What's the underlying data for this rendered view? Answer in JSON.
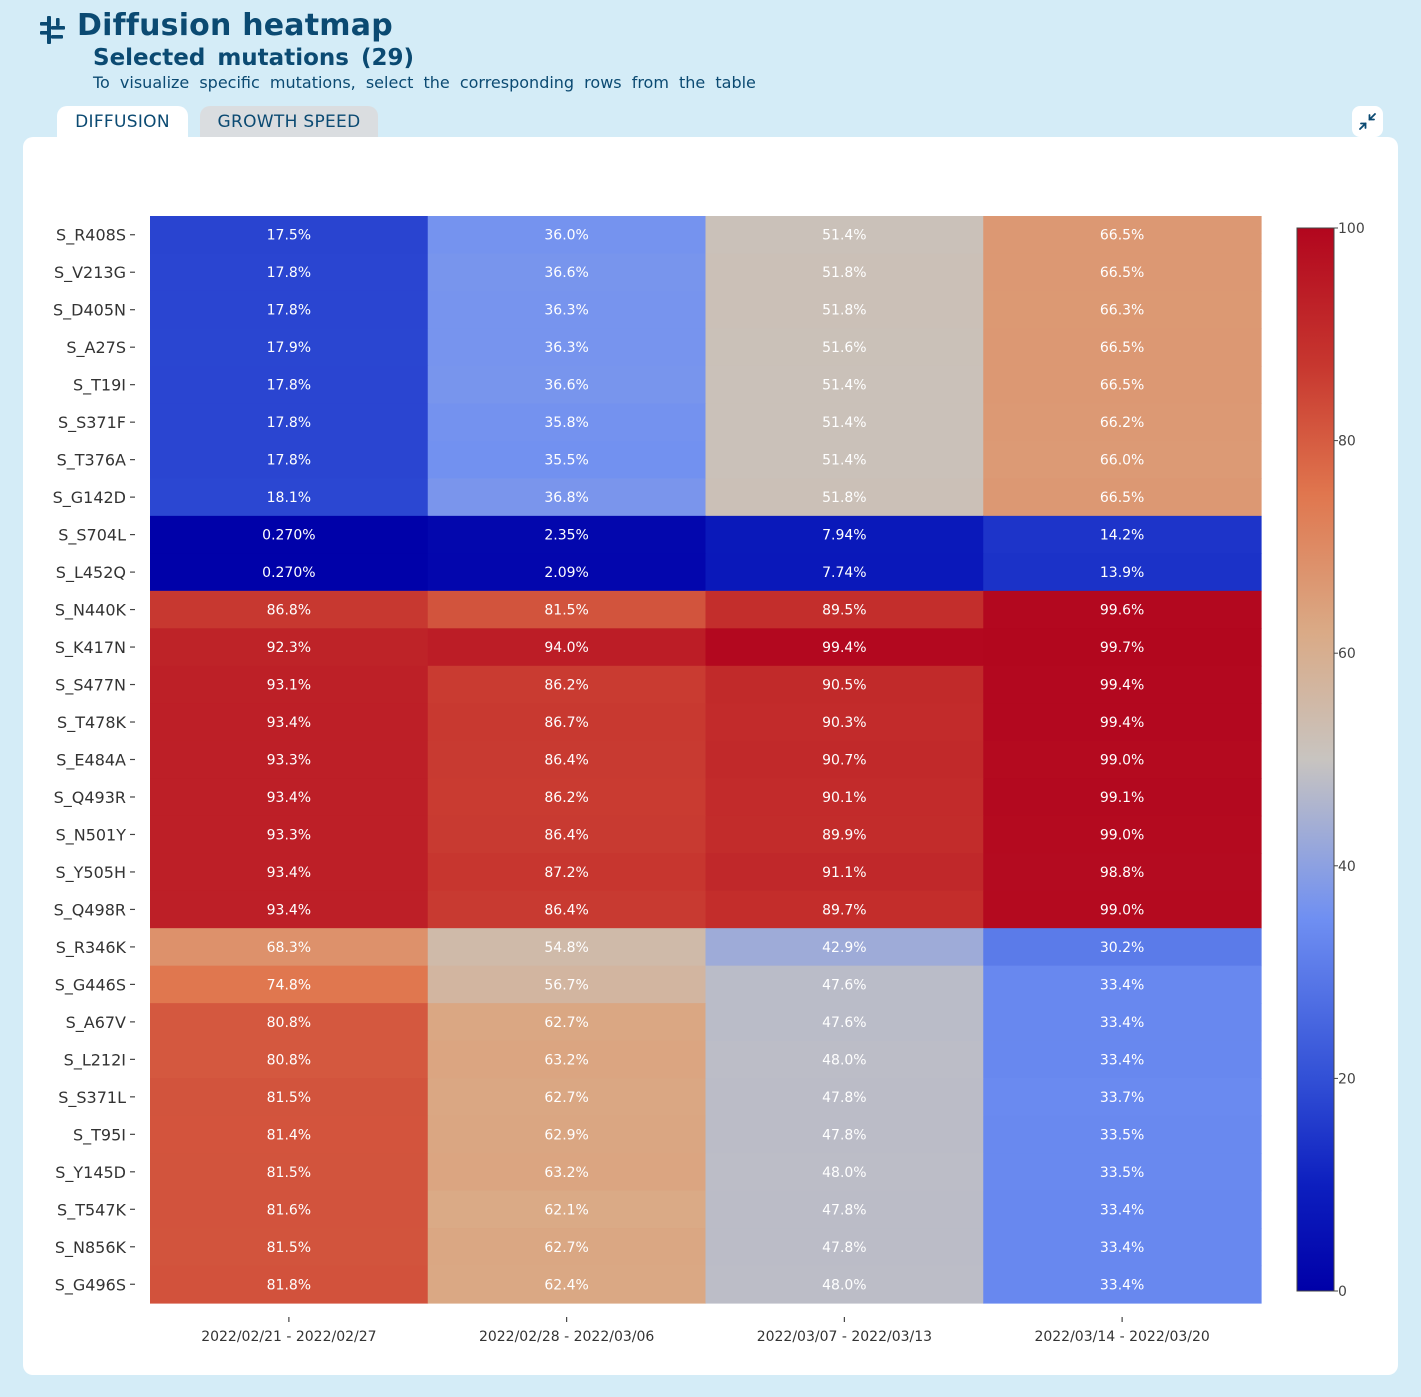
{
  "header": {
    "title": "Diffusion heatmap",
    "subtitle": "Selected mutations (29)",
    "hint": "To visualize specific mutations, select the corresponding rows from the table"
  },
  "tabs": [
    {
      "label": "DIFFUSION",
      "active": true
    },
    {
      "label": "GROWTH SPEED",
      "active": false
    }
  ],
  "icons": {
    "header": "tree-structure-icon",
    "collapse": "collapse-arrows-icon"
  },
  "colors": {
    "accent": "#0b4a72",
    "page_bg": "#d4ecf7",
    "scale_low": "#0000a8",
    "scale_mid": "#c8c4c0",
    "scale_high": "#b2061e"
  },
  "chart_data": {
    "type": "heatmap",
    "x": [
      "2022/02/21 - 2022/02/27",
      "2022/02/28 - 2022/03/06",
      "2022/03/07 - 2022/03/13",
      "2022/03/14 - 2022/03/20"
    ],
    "y": [
      "S_R408S",
      "S_V213G",
      "S_D405N",
      "S_A27S",
      "S_T19I",
      "S_S371F",
      "S_T376A",
      "S_G142D",
      "S_S704L",
      "S_L452Q",
      "S_N440K",
      "S_K417N",
      "S_S477N",
      "S_T478K",
      "S_E484A",
      "S_Q493R",
      "S_N501Y",
      "S_Y505H",
      "S_Q498R",
      "S_R346K",
      "S_G446S",
      "S_A67V",
      "S_L212I",
      "S_S371L",
      "S_T95I",
      "S_Y145D",
      "S_T547K",
      "S_N856K",
      "S_G496S"
    ],
    "values": [
      [
        17.5,
        36.0,
        51.4,
        66.5
      ],
      [
        17.8,
        36.6,
        51.8,
        66.5
      ],
      [
        17.8,
        36.3,
        51.8,
        66.3
      ],
      [
        17.9,
        36.3,
        51.6,
        66.5
      ],
      [
        17.8,
        36.6,
        51.4,
        66.5
      ],
      [
        17.8,
        35.8,
        51.4,
        66.2
      ],
      [
        17.8,
        35.5,
        51.4,
        66.0
      ],
      [
        18.1,
        36.8,
        51.8,
        66.5
      ],
      [
        0.27,
        2.35,
        7.94,
        14.2
      ],
      [
        0.27,
        2.09,
        7.74,
        13.9
      ],
      [
        86.8,
        81.5,
        89.5,
        99.6
      ],
      [
        92.3,
        94.0,
        99.4,
        99.7
      ],
      [
        93.1,
        86.2,
        90.5,
        99.4
      ],
      [
        93.4,
        86.7,
        90.3,
        99.4
      ],
      [
        93.3,
        86.4,
        90.7,
        99.0
      ],
      [
        93.4,
        86.2,
        90.1,
        99.1
      ],
      [
        93.3,
        86.4,
        89.9,
        99.0
      ],
      [
        93.4,
        87.2,
        91.1,
        98.8
      ],
      [
        93.4,
        86.4,
        89.7,
        99.0
      ],
      [
        68.3,
        54.8,
        42.9,
        30.2
      ],
      [
        74.8,
        56.7,
        47.6,
        33.4
      ],
      [
        80.8,
        62.7,
        47.6,
        33.4
      ],
      [
        80.8,
        63.2,
        48.0,
        33.4
      ],
      [
        81.5,
        62.7,
        47.8,
        33.7
      ],
      [
        81.4,
        62.9,
        47.8,
        33.5
      ],
      [
        81.5,
        63.2,
        48.0,
        33.5
      ],
      [
        81.6,
        62.1,
        47.8,
        33.4
      ],
      [
        81.5,
        62.7,
        47.8,
        33.4
      ],
      [
        81.8,
        62.4,
        48.0,
        33.4
      ]
    ],
    "cell_labels": [
      [
        "17.5%",
        "36.0%",
        "51.4%",
        "66.5%"
      ],
      [
        "17.8%",
        "36.6%",
        "51.8%",
        "66.5%"
      ],
      [
        "17.8%",
        "36.3%",
        "51.8%",
        "66.3%"
      ],
      [
        "17.9%",
        "36.3%",
        "51.6%",
        "66.5%"
      ],
      [
        "17.8%",
        "36.6%",
        "51.4%",
        "66.5%"
      ],
      [
        "17.8%",
        "35.8%",
        "51.4%",
        "66.2%"
      ],
      [
        "17.8%",
        "35.5%",
        "51.4%",
        "66.0%"
      ],
      [
        "18.1%",
        "36.8%",
        "51.8%",
        "66.5%"
      ],
      [
        "0.270%",
        "2.35%",
        "7.94%",
        "14.2%"
      ],
      [
        "0.270%",
        "2.09%",
        "7.74%",
        "13.9%"
      ],
      [
        "86.8%",
        "81.5%",
        "89.5%",
        "99.6%"
      ],
      [
        "92.3%",
        "94.0%",
        "99.4%",
        "99.7%"
      ],
      [
        "93.1%",
        "86.2%",
        "90.5%",
        "99.4%"
      ],
      [
        "93.4%",
        "86.7%",
        "90.3%",
        "99.4%"
      ],
      [
        "93.3%",
        "86.4%",
        "90.7%",
        "99.0%"
      ],
      [
        "93.4%",
        "86.2%",
        "90.1%",
        "99.1%"
      ],
      [
        "93.3%",
        "86.4%",
        "89.9%",
        "99.0%"
      ],
      [
        "93.4%",
        "87.2%",
        "91.1%",
        "98.8%"
      ],
      [
        "93.4%",
        "86.4%",
        "89.7%",
        "99.0%"
      ],
      [
        "68.3%",
        "54.8%",
        "42.9%",
        "30.2%"
      ],
      [
        "74.8%",
        "56.7%",
        "47.6%",
        "33.4%"
      ],
      [
        "80.8%",
        "62.7%",
        "47.6%",
        "33.4%"
      ],
      [
        "80.8%",
        "63.2%",
        "48.0%",
        "33.4%"
      ],
      [
        "81.5%",
        "62.7%",
        "47.8%",
        "33.7%"
      ],
      [
        "81.4%",
        "62.9%",
        "47.8%",
        "33.5%"
      ],
      [
        "81.5%",
        "63.2%",
        "48.0%",
        "33.5%"
      ],
      [
        "81.6%",
        "62.1%",
        "47.8%",
        "33.4%"
      ],
      [
        "81.5%",
        "62.7%",
        "47.8%",
        "33.4%"
      ],
      [
        "81.8%",
        "62.4%",
        "48.0%",
        "33.4%"
      ]
    ],
    "colorscale": "coolwarm",
    "zlim": [
      0,
      100
    ],
    "colorbar_ticks": [
      0,
      20,
      40,
      60,
      80,
      100
    ],
    "colorbar_labels": [
      "0",
      "20",
      "40",
      "60",
      "80",
      "100"
    ],
    "legend_position": "right",
    "grid": false
  }
}
